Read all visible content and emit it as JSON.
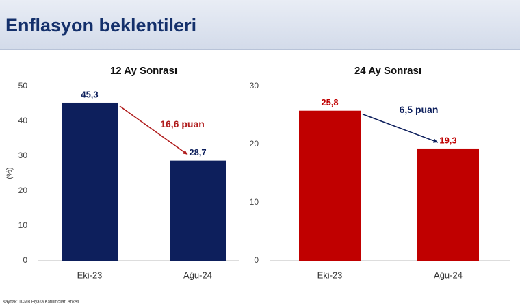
{
  "header": {
    "title": "Enflasyon beklentileri"
  },
  "source": "Kaynak: TCMB Piyasa Katılımcıları Anketi",
  "chart_data": [
    {
      "type": "bar",
      "title": "12 Ay Sonrası",
      "ylabel": "(%)",
      "categories": [
        "Eki-23",
        "Ağu-24"
      ],
      "values": [
        45.3,
        28.7
      ],
      "value_labels": [
        "45,3",
        "28,7"
      ],
      "color": "#0d1f5c",
      "ylim": [
        0,
        50
      ],
      "yticks": [
        0,
        10,
        20,
        30,
        40,
        50
      ],
      "annotation": "16,6 puan",
      "annotation_color": "#b01c1c"
    },
    {
      "type": "bar",
      "title": "24 Ay Sonrası",
      "categories": [
        "Eki-23",
        "Ağu-24"
      ],
      "values": [
        25.8,
        19.3
      ],
      "value_labels": [
        "25,8",
        "19,3"
      ],
      "color": "#c00000",
      "ylim": [
        0,
        30
      ],
      "yticks": [
        0,
        10,
        20,
        30
      ],
      "annotation": "6,5 puan",
      "annotation_color": "#0d1f5c"
    }
  ]
}
